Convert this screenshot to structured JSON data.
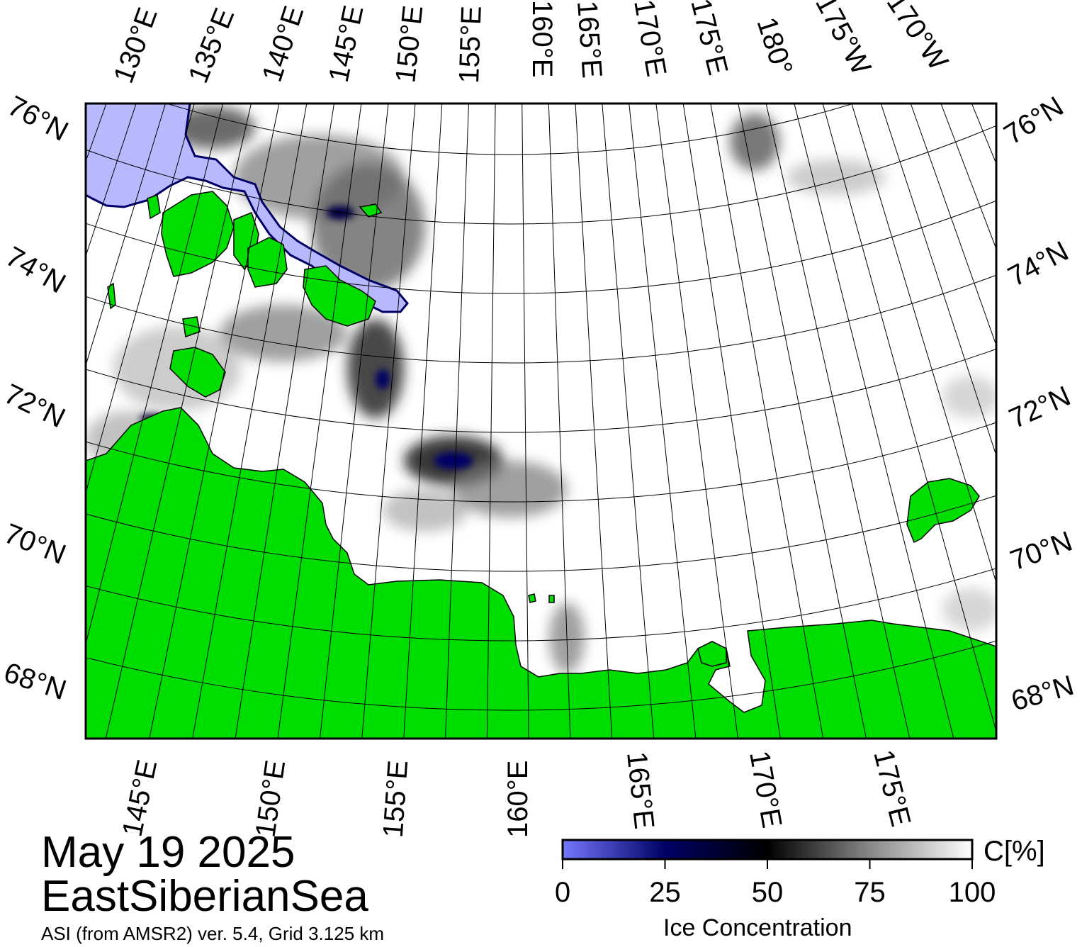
{
  "header": {
    "date": "May 19 2025",
    "region": "EastSiberianSea",
    "source": "ASI (from AMSR2) ver. 5.4,  Grid 3.125 km"
  },
  "map": {
    "top_lon_labels": [
      "130°E",
      "135°E",
      "140°E",
      "145°E",
      "150°E",
      "155°E",
      "160°E",
      "165°E",
      "170°E",
      "175°E",
      "180°",
      "175°W",
      "170°W"
    ],
    "bottom_lon_labels": [
      "145°E",
      "150°E",
      "155°E",
      "160°E",
      "165°E",
      "170°E",
      "175°E"
    ],
    "left_lat_labels": [
      "76°N",
      "74°N",
      "72°N",
      "70°N",
      "68°N"
    ],
    "right_lat_labels": [
      "76°N",
      "74°N",
      "72°N",
      "70°N",
      "68°N"
    ],
    "colors": {
      "land": "#00dd00",
      "open_water": "#b8b8ff",
      "ice_full": "#ffffff",
      "ice_mid": "#000000",
      "low_conc": "#000066",
      "grid": "#000000"
    }
  },
  "legend": {
    "title": "Ice Concentration",
    "unit": "C[%]",
    "ticks": [
      "0",
      "25",
      "50",
      "75",
      "100"
    ],
    "colors": [
      "#7777ff",
      "#000066",
      "#000000",
      "#888888",
      "#ffffff"
    ]
  }
}
